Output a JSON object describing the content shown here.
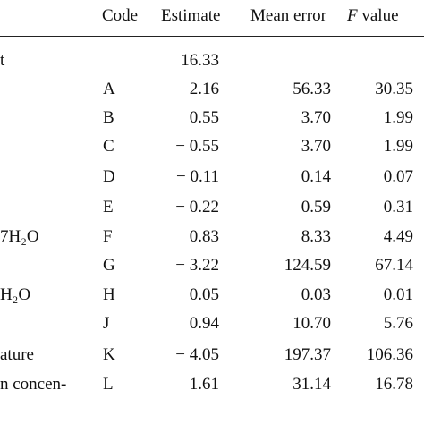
{
  "table": {
    "header": {
      "code": "Code",
      "estimate": "Estimate",
      "mean_error": "Mean error",
      "f_value": {
        "symbol": "F",
        "text": "value"
      }
    },
    "rows": [
      {
        "label": "t",
        "estimate": "16.33"
      },
      {
        "code": "A",
        "estimate": "2.16",
        "mean_error": "56.33",
        "f_value": "30.35"
      },
      {
        "code": "B",
        "estimate": "0.55",
        "mean_error": "3.70",
        "f_value": "1.99"
      },
      {
        "code": "C",
        "estimate": "− 0.55",
        "mean_error": "3.70",
        "f_value": "1.99"
      },
      {
        "code": "D",
        "estimate": "− 0.11",
        "mean_error": "0.14",
        "f_value": "0.07"
      },
      {
        "code": "E",
        "estimate": "− 0.22",
        "mean_error": "0.59",
        "f_value": "0.31"
      },
      {
        "label": "7H₂O",
        "code": "F",
        "estimate": "0.83",
        "mean_error": "8.33",
        "f_value": "4.49"
      },
      {
        "code": "G",
        "estimate": "− 3.22",
        "mean_error": "124.59",
        "f_value": "67.14"
      },
      {
        "label": "H₂O",
        "code": "H",
        "estimate": "0.05",
        "mean_error": "0.03",
        "f_value": "0.01"
      },
      {
        "code": "J",
        "estimate": "0.94",
        "mean_error": "10.70",
        "f_value": "5.76"
      },
      {
        "label": "ature",
        "code": "K",
        "estimate": "− 4.05",
        "mean_error": "197.37",
        "f_value": "106.36"
      },
      {
        "label": "n concen-",
        "code": "L",
        "estimate": "1.61",
        "mean_error": "31.14",
        "f_value": "16.78"
      }
    ]
  }
}
